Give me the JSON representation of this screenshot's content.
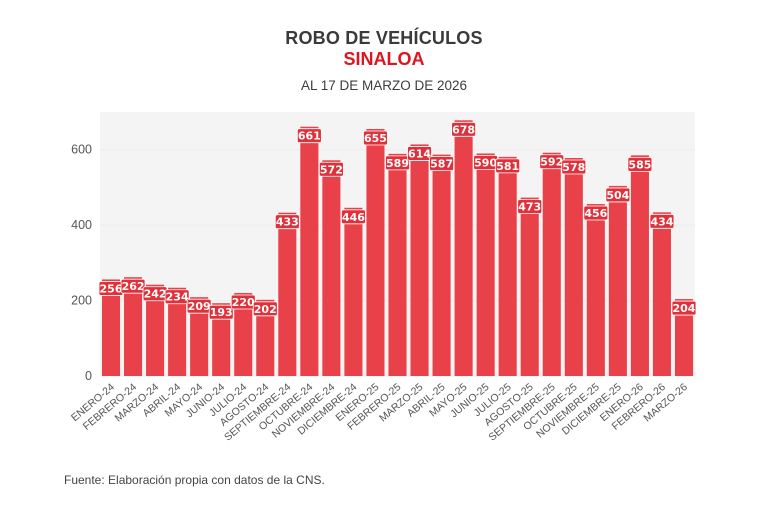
{
  "header": {
    "title": "ROBO DE VEHÍCULOS",
    "region": "SINALOA",
    "date": "AL 17 DE MARZO DE 2026"
  },
  "footer": {
    "source": "Fuente: Elaboración propia con datos de la CNS."
  },
  "colors": {
    "bar": "#e8414a",
    "title": "#3a3a3a",
    "region": "#e0141e",
    "plot_bg": "#f4f4f4"
  },
  "chart_data": {
    "type": "bar",
    "title": "ROBO DE VEHÍCULOS",
    "subtitle": "SINALOA — AL 17 DE MARZO DE 2026",
    "xlabel": "",
    "ylabel": "",
    "ylim": [
      0,
      700
    ],
    "yticks": [
      0,
      200,
      400,
      600
    ],
    "grid": true,
    "legend": "none",
    "categories": [
      "ENERO-24",
      "FEBRERO-24",
      "MARZO-24",
      "ABRIL-24",
      "MAYO-24",
      "JUNIO-24",
      "JULIO-24",
      "AGOSTO-24",
      "SEPTIEMBRE-24",
      "OCTUBRE-24",
      "NOVIEMBRE-24",
      "DICIEMBRE-24",
      "ENERO-25",
      "FEBRERO-25",
      "MARZO-25",
      "ABRIL-25",
      "MAYO-25",
      "JUNIO-25",
      "JULIO-25",
      "AGOSTO-25",
      "SEPTIEMBRE-25",
      "OCTUBRE-25",
      "NOVIEMBRE-25",
      "DICIEMBRE-25",
      "ENERO-26",
      "FEBRERO-26",
      "MARZO-26"
    ],
    "values": [
      256,
      262,
      242,
      234,
      209,
      193,
      220,
      202,
      433,
      661,
      572,
      446,
      655,
      589,
      614,
      587,
      678,
      590,
      581,
      473,
      592,
      578,
      456,
      504,
      585,
      434,
      204
    ]
  }
}
